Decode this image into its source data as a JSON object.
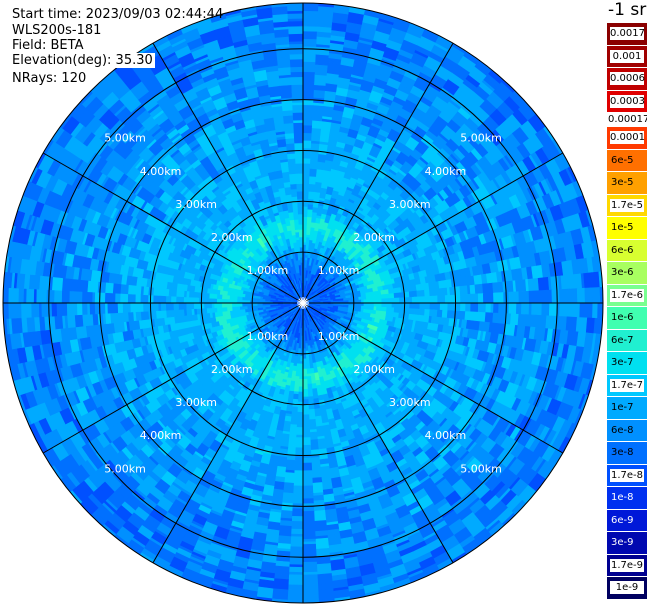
{
  "header": {
    "start_time": "Start time: 2023/09/03 02:44:44",
    "instrument": "WLS200s-181",
    "field": "Field: BETA",
    "elevation": "Elevation(deg): 35.30",
    "nrays": "NRays: 120"
  },
  "colorbar": {
    "units_label": "-1 sr",
    "entries": [
      {
        "label": "0.0017",
        "color": "#8a0000",
        "style": "boxed"
      },
      {
        "label": "0.001",
        "color": "#a00000",
        "style": "boxed"
      },
      {
        "label": "0.0006",
        "color": "#c00000",
        "style": "boxed"
      },
      {
        "label": "0.0003",
        "color": "#e00000",
        "style": "boxed"
      },
      {
        "label": "0.00017",
        "color": "#ffffff",
        "style": "gap"
      },
      {
        "label": "0.0001",
        "color": "#ff3a00",
        "style": "boxed"
      },
      {
        "label": "6e-5",
        "color": "#ff7000",
        "style": "plain"
      },
      {
        "label": "3e-5",
        "color": "#ffa000",
        "style": "plain"
      },
      {
        "label": "1.7e-5",
        "color": "#ffd800",
        "style": "boxed"
      },
      {
        "label": "1e-5",
        "color": "#ffff00",
        "style": "plain"
      },
      {
        "label": "6e-6",
        "color": "#d8ff30",
        "style": "plain"
      },
      {
        "label": "3e-6",
        "color": "#a8ff60",
        "style": "plain"
      },
      {
        "label": "1.7e-6",
        "color": "#78ff90",
        "style": "boxed"
      },
      {
        "label": "1e-6",
        "color": "#40ffb0",
        "style": "plain"
      },
      {
        "label": "6e-7",
        "color": "#20f0d0",
        "style": "plain"
      },
      {
        "label": "3e-7",
        "color": "#00e0f0",
        "style": "plain"
      },
      {
        "label": "1.7e-7",
        "color": "#00c8ff",
        "style": "boxed"
      },
      {
        "label": "1e-7",
        "color": "#00aaff",
        "style": "plain"
      },
      {
        "label": "6e-8",
        "color": "#0090ff",
        "style": "plain"
      },
      {
        "label": "3e-8",
        "color": "#0070ff",
        "style": "plain"
      },
      {
        "label": "1.7e-8",
        "color": "#0050ff",
        "style": "boxed"
      },
      {
        "label": "1e-8",
        "color": "#0030f0",
        "style": "light"
      },
      {
        "label": "6e-9",
        "color": "#0018d8",
        "style": "light"
      },
      {
        "label": "3e-9",
        "color": "#0008b0",
        "style": "light"
      },
      {
        "label": "1.7e-9",
        "color": "#000090",
        "style": "boxed"
      },
      {
        "label": "1e-9",
        "color": "#000060",
        "style": "boxed"
      }
    ]
  },
  "chart_data": {
    "type": "heatmap",
    "projection": "polar PPI",
    "max_range_km": 5.9,
    "range_rings_km": [
      1,
      2,
      3,
      4,
      5
    ],
    "ring_labels": [
      "1.00km",
      "2.00km",
      "3.00km",
      "4.00km",
      "5.00km"
    ],
    "azimuth_spokes_deg": [
      0,
      30,
      60,
      90,
      120,
      150,
      180,
      210,
      240,
      270,
      300,
      330
    ],
    "colormap": [
      "#000060",
      "#000090",
      "#0008b0",
      "#0018d8",
      "#0030f0",
      "#0050ff",
      "#0070ff",
      "#0090ff",
      "#00aaff",
      "#00c8ff",
      "#00e0f0",
      "#20f0d0",
      "#40ffb0"
    ],
    "field_pattern": {
      "center_value": "3e-8",
      "ring_1.5km_value": "6e-7",
      "outer_value": "1e-7",
      "edge_value": "3e-8"
    }
  }
}
